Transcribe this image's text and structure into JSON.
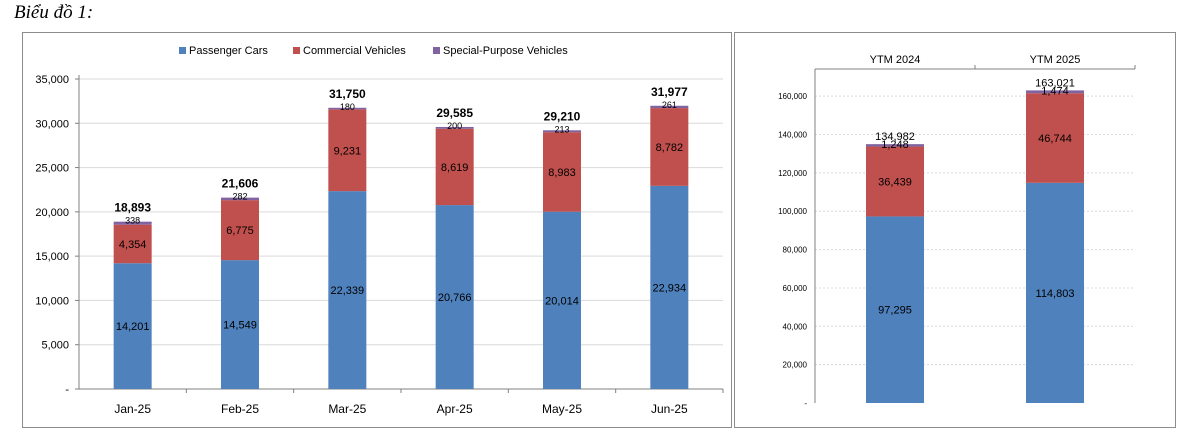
{
  "caption": "Biểu đồ 1:",
  "colors": {
    "passenger": "#4f81bd",
    "commercial": "#c0504d",
    "special": "#8064a2",
    "grid": "#d9d9d9",
    "axis": "#808080"
  },
  "chart_data": [
    {
      "type": "bar",
      "stacked": true,
      "title": "",
      "legend": [
        "Passenger Cars",
        "Commercial Vehicles",
        "Special-Purpose Vehicles"
      ],
      "legend_position": "top",
      "categories": [
        "Jan-25",
        "Feb-25",
        "Mar-25",
        "Apr-25",
        "May-25",
        "Jun-25"
      ],
      "series": [
        {
          "name": "Passenger Cars",
          "values": [
            14201,
            14549,
            22339,
            20766,
            20014,
            22934
          ],
          "labels": [
            "14,201",
            "14,549",
            "22,339",
            "20,766",
            "20,014",
            "22,934"
          ]
        },
        {
          "name": "Commercial Vehicles",
          "values": [
            4354,
            6775,
            9231,
            8619,
            8983,
            8782
          ],
          "labels": [
            "4,354",
            "6,775",
            "9,231",
            "8,619",
            "8,983",
            "8,782"
          ]
        },
        {
          "name": "Special-Purpose Vehicles",
          "values": [
            338,
            282,
            180,
            200,
            213,
            261
          ],
          "labels": [
            "338",
            "282",
            "180",
            "200",
            "213",
            "261"
          ]
        }
      ],
      "totals": [
        "18,893",
        "21,606",
        "31,750",
        "29,585",
        "29,210",
        "31,977"
      ],
      "ylim": [
        0,
        35000
      ],
      "yticks": [
        0,
        5000,
        10000,
        15000,
        20000,
        25000,
        30000,
        35000
      ],
      "ytick_labels": [
        "-",
        "5,000",
        "10,000",
        "15,000",
        "20,000",
        "25,000",
        "30,000",
        "35,000"
      ],
      "grid": true
    },
    {
      "type": "bar",
      "stacked": true,
      "title": "",
      "legend": [],
      "categories": [
        "YTM 2024",
        "YTM 2025"
      ],
      "series": [
        {
          "name": "Passenger Cars",
          "values": [
            97295,
            114803
          ],
          "labels": [
            "97,295",
            "114,803"
          ]
        },
        {
          "name": "Commercial Vehicles",
          "values": [
            36439,
            46744
          ],
          "labels": [
            "36,439",
            "46,744"
          ]
        },
        {
          "name": "Special-Purpose Vehicles",
          "values": [
            1248,
            1474
          ],
          "labels": [
            "1,248",
            "1,474"
          ]
        }
      ],
      "totals": [
        "134,982",
        "163,021"
      ],
      "ylim": [
        0,
        170000
      ],
      "yticks": [
        0,
        20000,
        40000,
        60000,
        80000,
        100000,
        120000,
        140000,
        160000
      ],
      "ytick_labels": [
        "-",
        "20,000",
        "40,000",
        "60,000",
        "80,000",
        "100,000",
        "120,000",
        "140,000",
        "160,000"
      ],
      "grid": true,
      "category_axis_position": "top"
    }
  ]
}
